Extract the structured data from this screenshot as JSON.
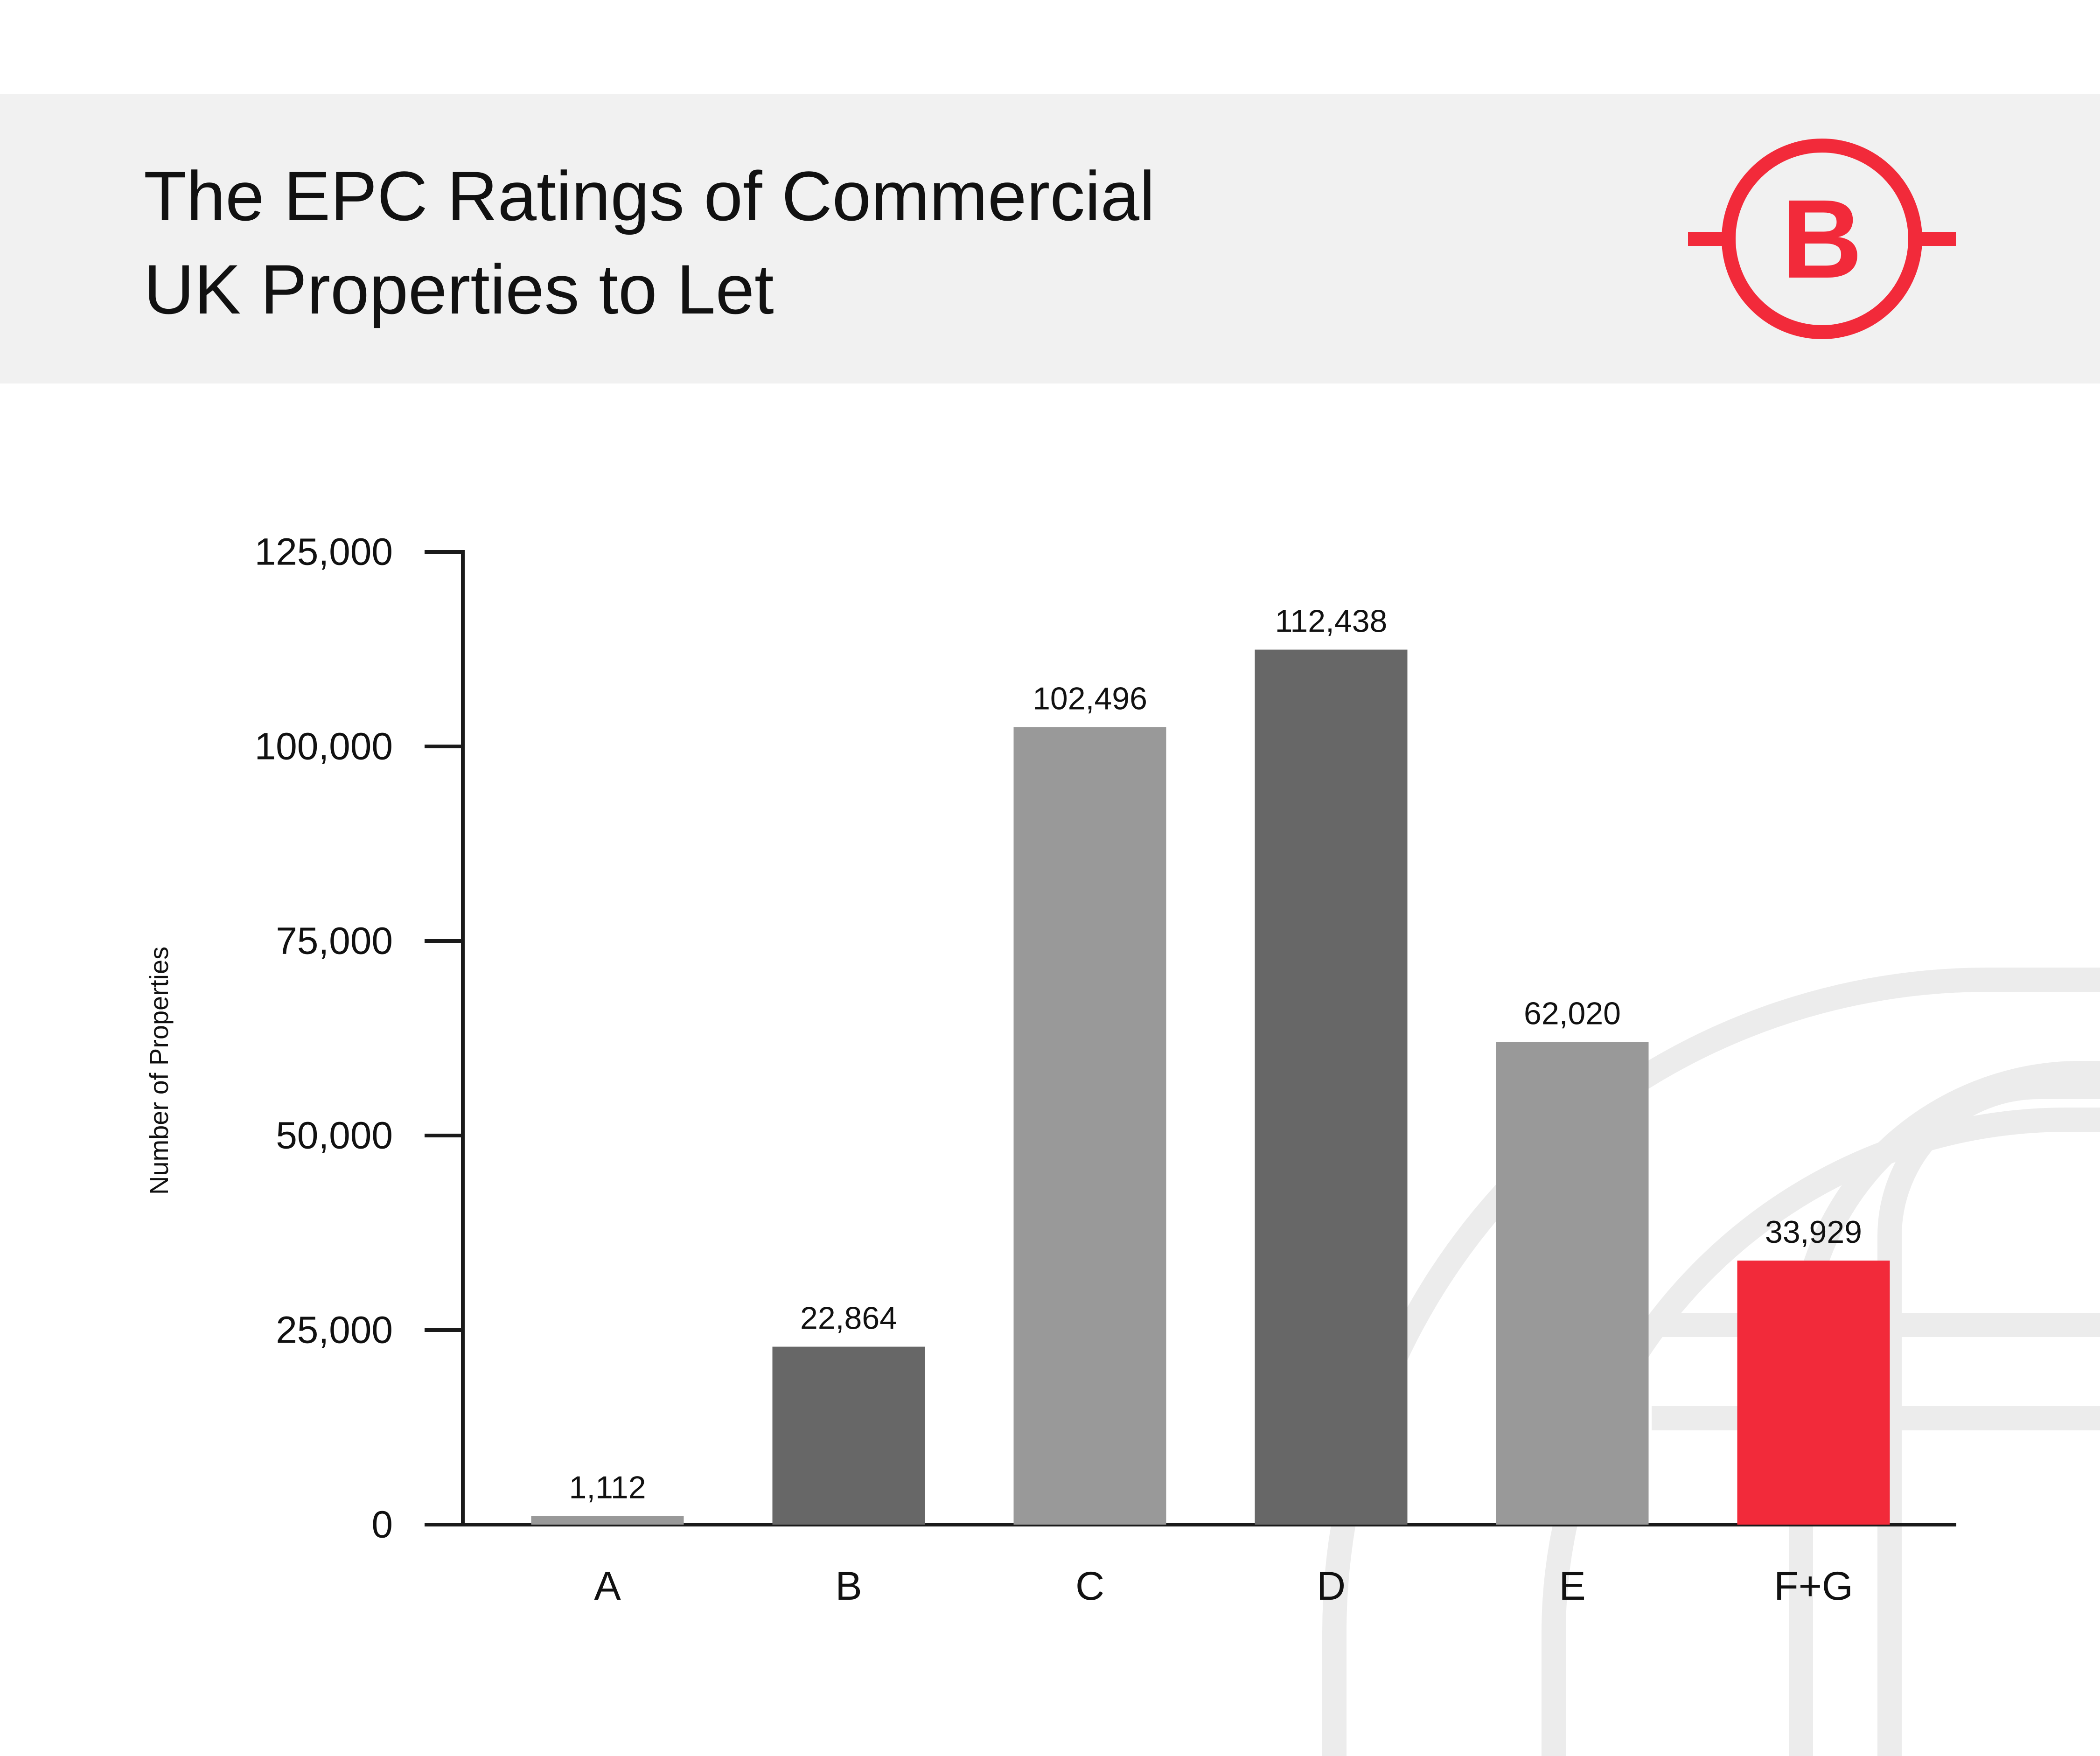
{
  "chart_data": {
    "type": "bar",
    "title": "The EPC Ratings of Commercial\nUK Properties to Let",
    "xlabel": "",
    "ylabel": "Number of Properties",
    "categories": [
      "A",
      "B",
      "C",
      "D",
      "E",
      "F+G"
    ],
    "values": [
      1112,
      22864,
      102496,
      112438,
      62020,
      33929
    ],
    "value_labels": [
      "1,112",
      "22,864",
      "102,496",
      "112,438",
      "62,020",
      "33,929"
    ],
    "bar_colors": [
      "#999999",
      "#676767",
      "#999999",
      "#676767",
      "#999999",
      "#f22a3a"
    ],
    "ylim": [
      0,
      125000
    ],
    "yticks": [
      0,
      25000,
      50000,
      75000,
      100000,
      125000
    ],
    "ytick_labels": [
      "0",
      "25,000",
      "50,000",
      "75,000",
      "100,000",
      "125,000"
    ],
    "grid": false,
    "legend": "none"
  },
  "logo": {
    "letter": "B",
    "color": "#f22a3a"
  },
  "colors": {
    "header_background": "#f1f1f1",
    "axis": "#1a1a1a",
    "decoration": "#ececec"
  }
}
